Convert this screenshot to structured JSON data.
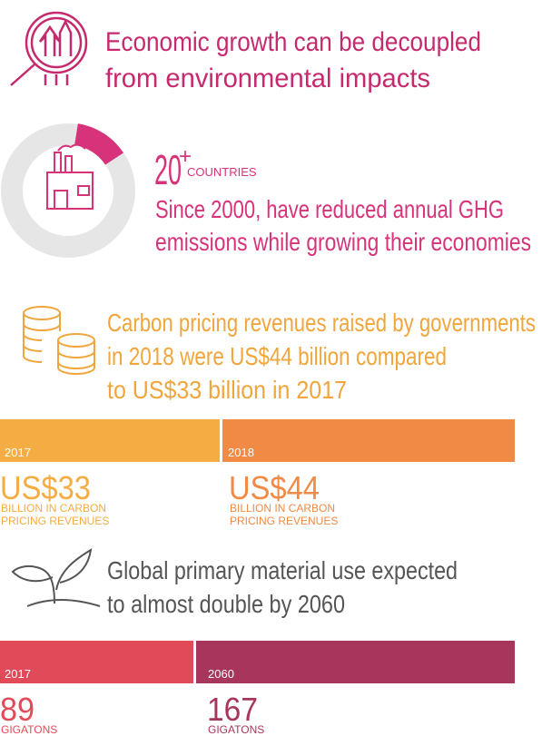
{
  "header": {
    "title_lines": [
      "Economic growth can be decoupled",
      "from environmental impacts"
    ]
  },
  "stat": {
    "value": "20",
    "suffix": "+",
    "unit": "COUNTRIES",
    "description_lines": [
      "Since 2000, have reduced annual GHG",
      "emissions while growing their economies"
    ]
  },
  "carbon": {
    "text_lines": [
      "Carbon pricing revenues raised by governments",
      "in 2018 were US$44 billion compared",
      "to US$33 billion in 2017"
    ],
    "bars": [
      {
        "year": "2017",
        "amount": "US$33",
        "note_lines": [
          "BILLION IN CARBON",
          "PRICING REVENUES"
        ]
      },
      {
        "year": "2018",
        "amount": "US$44",
        "note_lines": [
          "BILLION IN CARBON",
          "PRICING REVENUES"
        ]
      }
    ]
  },
  "material": {
    "text_lines": [
      "Global primary material use expected",
      "to almost double by 2060"
    ],
    "bars": [
      {
        "year": "2017",
        "amount": "89",
        "unit": "GIGATONS"
      },
      {
        "year": "2060",
        "amount": "167",
        "unit": "GIGATONS"
      }
    ]
  }
}
